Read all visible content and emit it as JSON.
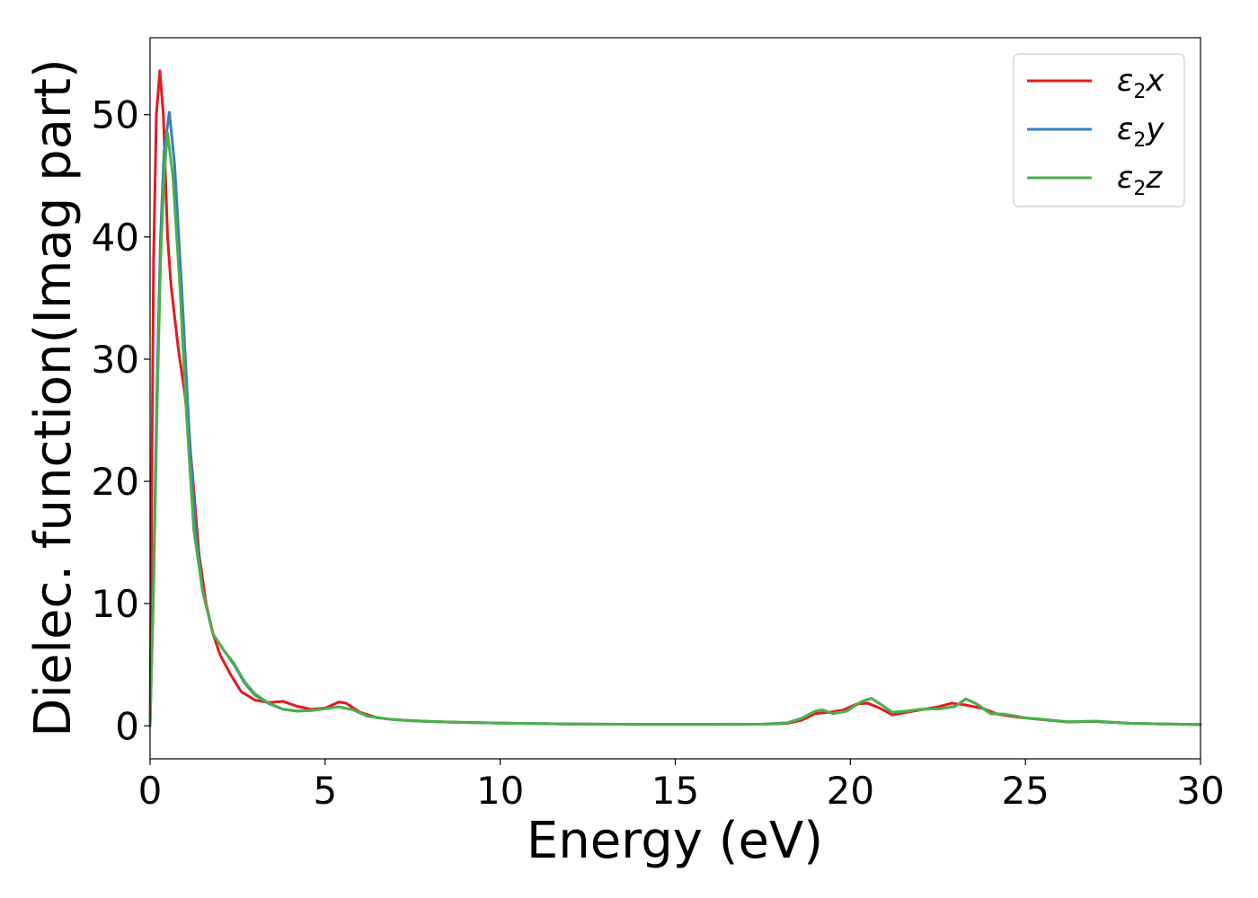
{
  "chart_data": {
    "type": "line",
    "title": "",
    "xlabel": "Energy (eV)",
    "ylabel": "Dielec. function(Imag part)",
    "xlim": [
      0,
      30
    ],
    "ylim": [
      -2.7,
      56.3
    ],
    "xticks": [
      0,
      5,
      10,
      15,
      20,
      25,
      30
    ],
    "yticks": [
      0,
      10,
      20,
      30,
      40,
      50
    ],
    "grid": false,
    "legend_position": "top-right",
    "series": [
      {
        "name": "ε2x",
        "legend_base": "ε",
        "legend_sub": "2",
        "legend_tail": "x",
        "color": "#e41a1c",
        "points": [
          [
            0,
            0
          ],
          [
            0.05,
            20
          ],
          [
            0.1,
            38
          ],
          [
            0.18,
            50
          ],
          [
            0.28,
            53.6
          ],
          [
            0.38,
            50
          ],
          [
            0.5,
            40
          ],
          [
            0.6,
            36
          ],
          [
            0.8,
            31
          ],
          [
            1.0,
            27
          ],
          [
            1.2,
            21
          ],
          [
            1.4,
            14
          ],
          [
            1.6,
            10
          ],
          [
            1.8,
            7.5
          ],
          [
            2.0,
            5.8
          ],
          [
            2.3,
            4.2
          ],
          [
            2.6,
            2.8
          ],
          [
            3.0,
            2.1
          ],
          [
            3.4,
            1.9
          ],
          [
            3.8,
            2.0
          ],
          [
            4.2,
            1.6
          ],
          [
            4.6,
            1.35
          ],
          [
            5.0,
            1.45
          ],
          [
            5.4,
            1.95
          ],
          [
            5.6,
            1.85
          ],
          [
            6.0,
            1.1
          ],
          [
            6.5,
            0.65
          ],
          [
            7.0,
            0.5
          ],
          [
            8.0,
            0.35
          ],
          [
            9.0,
            0.28
          ],
          [
            10.0,
            0.22
          ],
          [
            12.0,
            0.15
          ],
          [
            14.0,
            0.12
          ],
          [
            16.0,
            0.12
          ],
          [
            17.5,
            0.13
          ],
          [
            18.2,
            0.2
          ],
          [
            18.6,
            0.45
          ],
          [
            19.0,
            1.0
          ],
          [
            19.4,
            1.1
          ],
          [
            19.8,
            1.3
          ],
          [
            20.2,
            1.8
          ],
          [
            20.5,
            1.85
          ],
          [
            20.8,
            1.5
          ],
          [
            21.2,
            0.9
          ],
          [
            21.6,
            1.1
          ],
          [
            22.0,
            1.3
          ],
          [
            22.5,
            1.55
          ],
          [
            22.9,
            1.85
          ],
          [
            23.3,
            1.7
          ],
          [
            23.8,
            1.4
          ],
          [
            24.2,
            0.95
          ],
          [
            24.8,
            0.7
          ],
          [
            25.5,
            0.5
          ],
          [
            26.2,
            0.32
          ],
          [
            27.0,
            0.35
          ],
          [
            28.0,
            0.2
          ],
          [
            29.0,
            0.15
          ],
          [
            30.0,
            0.1
          ]
        ]
      },
      {
        "name": "ε2y",
        "legend_base": "ε",
        "legend_sub": "2",
        "legend_tail": "y",
        "color": "#377eb8",
        "points": [
          [
            0,
            0
          ],
          [
            0.1,
            12
          ],
          [
            0.2,
            28
          ],
          [
            0.3,
            40
          ],
          [
            0.4,
            47
          ],
          [
            0.55,
            50.2
          ],
          [
            0.7,
            46
          ],
          [
            0.9,
            36
          ],
          [
            1.1,
            25
          ],
          [
            1.3,
            16
          ],
          [
            1.5,
            11
          ],
          [
            1.8,
            7.5
          ],
          [
            2.1,
            6.2
          ],
          [
            2.4,
            5.0
          ],
          [
            2.7,
            3.5
          ],
          [
            3.0,
            2.5
          ],
          [
            3.4,
            1.8
          ],
          [
            3.8,
            1.35
          ],
          [
            4.2,
            1.2
          ],
          [
            4.6,
            1.25
          ],
          [
            5.0,
            1.4
          ],
          [
            5.4,
            1.55
          ],
          [
            5.8,
            1.3
          ],
          [
            6.2,
            0.8
          ],
          [
            6.8,
            0.55
          ],
          [
            7.5,
            0.4
          ],
          [
            8.5,
            0.3
          ],
          [
            10.0,
            0.22
          ],
          [
            12.0,
            0.15
          ],
          [
            14.0,
            0.12
          ],
          [
            16.0,
            0.12
          ],
          [
            17.5,
            0.13
          ],
          [
            18.2,
            0.25
          ],
          [
            18.6,
            0.6
          ],
          [
            19.0,
            1.2
          ],
          [
            19.2,
            1.3
          ],
          [
            19.5,
            1.0
          ],
          [
            19.9,
            1.2
          ],
          [
            20.3,
            1.95
          ],
          [
            20.6,
            2.25
          ],
          [
            20.9,
            1.7
          ],
          [
            21.2,
            1.1
          ],
          [
            21.6,
            1.2
          ],
          [
            22.0,
            1.35
          ],
          [
            22.6,
            1.4
          ],
          [
            23.0,
            1.6
          ],
          [
            23.3,
            2.2
          ],
          [
            23.6,
            1.8
          ],
          [
            24.0,
            1.0
          ],
          [
            24.4,
            0.95
          ],
          [
            25.0,
            0.65
          ],
          [
            25.6,
            0.5
          ],
          [
            26.2,
            0.32
          ],
          [
            27.0,
            0.38
          ],
          [
            28.0,
            0.2
          ],
          [
            29.0,
            0.15
          ],
          [
            30.0,
            0.1
          ]
        ]
      },
      {
        "name": "ε2z",
        "legend_base": "ε",
        "legend_sub": "2",
        "legend_tail": "z",
        "color": "#4daf4a",
        "points": [
          [
            0,
            0
          ],
          [
            0.1,
            11
          ],
          [
            0.2,
            26
          ],
          [
            0.3,
            38
          ],
          [
            0.4,
            45
          ],
          [
            0.5,
            48.5
          ],
          [
            0.65,
            45
          ],
          [
            0.85,
            36
          ],
          [
            1.05,
            25
          ],
          [
            1.25,
            16
          ],
          [
            1.5,
            11
          ],
          [
            1.8,
            7.5
          ],
          [
            2.1,
            6.2
          ],
          [
            2.4,
            5.1
          ],
          [
            2.7,
            3.6
          ],
          [
            3.0,
            2.6
          ],
          [
            3.4,
            1.85
          ],
          [
            3.8,
            1.35
          ],
          [
            4.2,
            1.2
          ],
          [
            4.6,
            1.25
          ],
          [
            5.0,
            1.4
          ],
          [
            5.4,
            1.55
          ],
          [
            5.8,
            1.3
          ],
          [
            6.2,
            0.8
          ],
          [
            6.8,
            0.55
          ],
          [
            7.5,
            0.4
          ],
          [
            8.5,
            0.3
          ],
          [
            10.0,
            0.22
          ],
          [
            12.0,
            0.15
          ],
          [
            14.0,
            0.12
          ],
          [
            16.0,
            0.12
          ],
          [
            17.5,
            0.13
          ],
          [
            18.2,
            0.25
          ],
          [
            18.6,
            0.6
          ],
          [
            19.0,
            1.2
          ],
          [
            19.2,
            1.3
          ],
          [
            19.5,
            1.0
          ],
          [
            19.9,
            1.2
          ],
          [
            20.3,
            1.95
          ],
          [
            20.6,
            2.25
          ],
          [
            20.9,
            1.7
          ],
          [
            21.2,
            1.1
          ],
          [
            21.6,
            1.2
          ],
          [
            22.0,
            1.35
          ],
          [
            22.6,
            1.4
          ],
          [
            23.0,
            1.6
          ],
          [
            23.3,
            2.2
          ],
          [
            23.6,
            1.8
          ],
          [
            24.0,
            1.0
          ],
          [
            24.4,
            0.95
          ],
          [
            25.0,
            0.65
          ],
          [
            25.6,
            0.5
          ],
          [
            26.2,
            0.32
          ],
          [
            27.0,
            0.38
          ],
          [
            28.0,
            0.2
          ],
          [
            29.0,
            0.15
          ],
          [
            30.0,
            0.1
          ]
        ]
      }
    ]
  }
}
